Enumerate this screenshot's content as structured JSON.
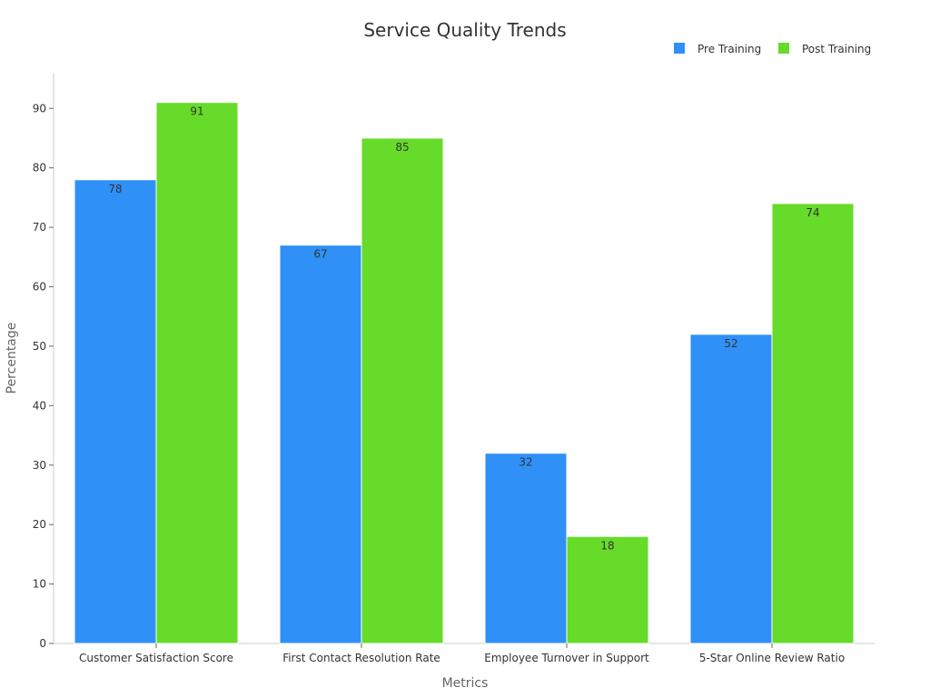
{
  "chart_data": {
    "type": "bar",
    "title": "Service Quality Trends",
    "xlabel": "Metrics",
    "ylabel": "Percentage",
    "ylim": [
      0,
      96
    ],
    "yticks": [
      0,
      10,
      20,
      30,
      40,
      50,
      60,
      70,
      80,
      90
    ],
    "categories": [
      "Customer Satisfaction Score",
      "First Contact Resolution Rate",
      "Employee Turnover in Support",
      "5-Star Online Review Ratio"
    ],
    "series": [
      {
        "name": "Pre Training",
        "color": "#2f91f7",
        "values": [
          78,
          67,
          32,
          52
        ]
      },
      {
        "name": "Post Training",
        "color": "#66db29",
        "values": [
          91,
          85,
          18,
          74
        ]
      }
    ],
    "legend_position": "top-right",
    "grid": false
  }
}
